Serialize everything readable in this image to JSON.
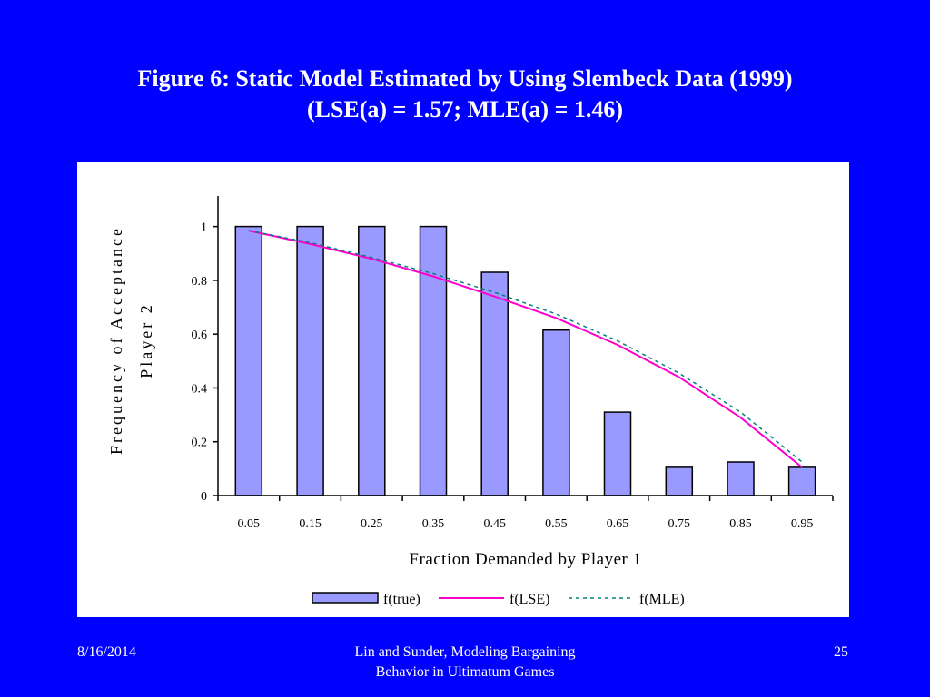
{
  "slide": {
    "title_line1": "Figure 6: Static Model Estimated by Using Slembeck Data (1999)",
    "title_line2": "(LSE(a) = 1.57; MLE(a) = 1.46)",
    "footer_date": "8/16/2014",
    "footer_center_line1": "Lin and Sunder, Modeling Bargaining",
    "footer_center_line2": "Behavior in Ultimatum Games",
    "footer_page": "25"
  },
  "colors": {
    "background": "#0000FF",
    "bar_fill": "#9999FF",
    "lse_line": "#FF00CC",
    "mle_line": "#008080"
  },
  "chart_data": {
    "type": "bar",
    "xlabel": "Fraction Demanded by Player 1",
    "ylabel_line1": "Frequency of Acceptance",
    "ylabel_line2": "Player 2",
    "categories": [
      "0.05",
      "0.15",
      "0.25",
      "0.35",
      "0.45",
      "0.55",
      "0.65",
      "0.75",
      "0.85",
      "0.95"
    ],
    "yticks": [
      "0",
      "0.2",
      "0.4",
      "0.6",
      "0.8",
      "1"
    ],
    "ylim": [
      0,
      1.1
    ],
    "grid": false,
    "legend_position": "bottom",
    "series": [
      {
        "name": "f(true)",
        "kind": "bar",
        "values": [
          1.0,
          1.0,
          1.0,
          1.0,
          0.83,
          0.615,
          0.31,
          0.105,
          0.125,
          0.105
        ]
      },
      {
        "name": "f(LSE)",
        "kind": "line",
        "style": "solid",
        "values": [
          0.985,
          0.935,
          0.88,
          0.815,
          0.74,
          0.66,
          0.56,
          0.44,
          0.29,
          0.105
        ]
      },
      {
        "name": "f(MLE)",
        "kind": "line",
        "style": "dashed",
        "values": [
          0.985,
          0.94,
          0.885,
          0.825,
          0.755,
          0.675,
          0.575,
          0.455,
          0.31,
          0.125
        ]
      }
    ]
  }
}
